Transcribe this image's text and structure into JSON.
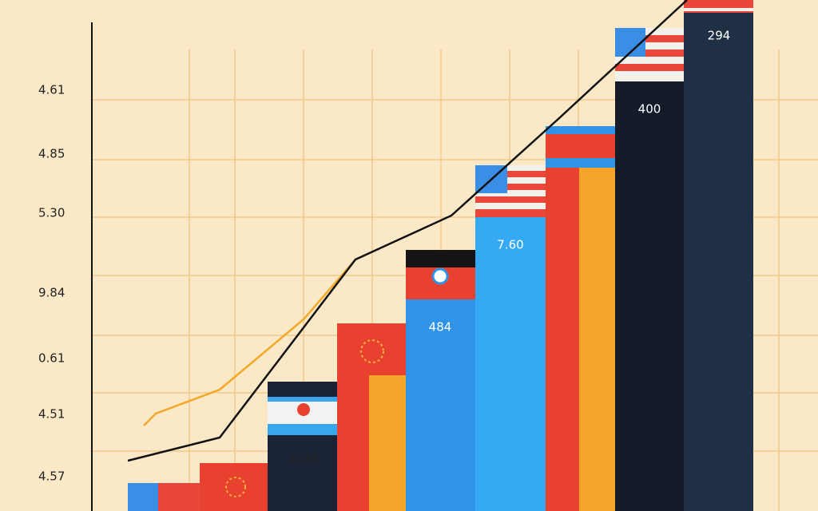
{
  "y_axis_labels": [
    "4.61",
    "4.85",
    "5.30",
    "9.84",
    "0.61",
    "4.51",
    "4.57"
  ],
  "bar_labels": [
    "2044",
    "484",
    "7.60",
    "400",
    "294"
  ]
}
